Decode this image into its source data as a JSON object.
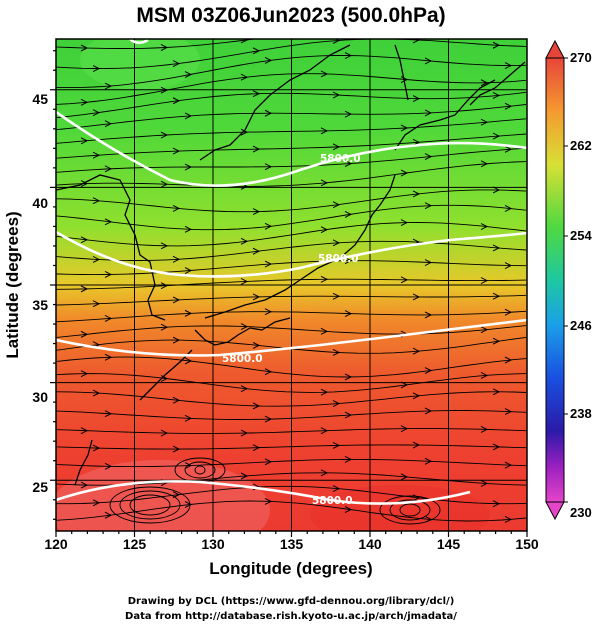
{
  "title": "MSM 03Z06Jun2023 (500.0hPa)",
  "xlabel": "Longitude (degrees)",
  "ylabel": "Latitude  (degrees)",
  "x_ticks": [
    "120",
    "125",
    "130",
    "135",
    "140",
    "145",
    "150"
  ],
  "y_ticks": [
    "25",
    "30",
    "35",
    "40",
    "45"
  ],
  "colorbar_ticks": [
    "270",
    "262",
    "254",
    "246",
    "238",
    "230"
  ],
  "contour_labels": [
    "5800.0",
    "5800.0",
    "5800.0",
    "5800.0"
  ],
  "credit_line1": "Drawing by DCL (https://www.gfd-dennou.org/library/dcl/)",
  "credit_line2": "Data from http://database.rish.kyoto-u.ac.jp/arch/jmadata/",
  "colors": {
    "colorbar_top": "#e8453a",
    "colorbar_bottom": "#e545c8",
    "contour": "#ffffff",
    "streamline": "#000000"
  },
  "chart_data": {
    "type": "heatmap",
    "title": "MSM 03Z06Jun2023 (500.0hPa)",
    "xlabel": "Longitude (degrees)",
    "ylabel": "Latitude  (degrees)",
    "xlim": [
      120,
      150
    ],
    "ylim": [
      22.4,
      47.6
    ],
    "colorbar_range": [
      230,
      270
    ],
    "colorbar_ticks": [
      270,
      262,
      254,
      246,
      238,
      230
    ],
    "grid": true,
    "overlays": [
      "streamlines",
      "coastlines",
      "contour 5800.0"
    ]
  }
}
